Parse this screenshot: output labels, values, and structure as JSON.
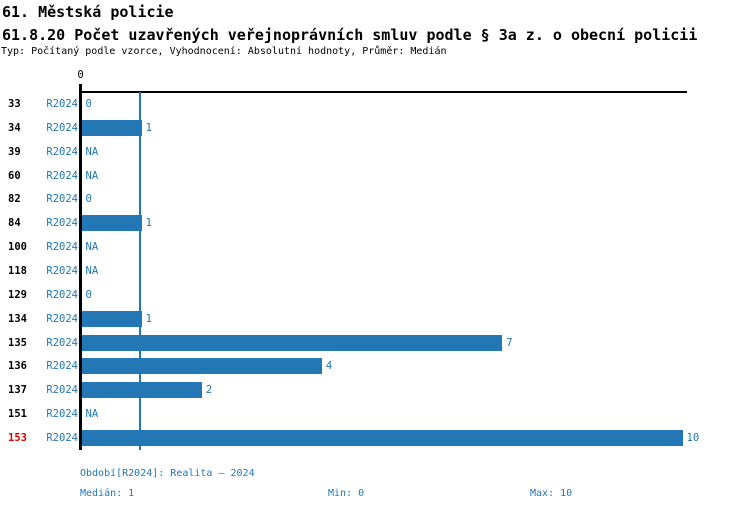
{
  "header": {
    "title": "61. Městská policie",
    "subtitle": "61.8.20 Počet uzavřených veřejnoprávních smluv podle § 3a z. o obecní policii",
    "meta": "Typ: Počítaný podle vzorce, Vyhodnocení: Absolutní hodnoty, Průměr: Medián"
  },
  "chart_data": {
    "type": "bar",
    "orientation": "horizontal",
    "title": "61.8.20 Počet uzavřených veřejnoprávních smluv podle § 3a z. o obecní policii",
    "series_name": "R2024",
    "axis_tick_label": "0",
    "xlim": [
      0,
      10
    ],
    "median_line_at": 1,
    "grid": false,
    "legend_position": "none",
    "categories": [
      "33",
      "34",
      "39",
      "60",
      "82",
      "84",
      "100",
      "118",
      "129",
      "134",
      "135",
      "136",
      "137",
      "151",
      "153"
    ],
    "values": [
      0,
      1,
      null,
      null,
      0,
      1,
      null,
      null,
      0,
      1,
      7,
      4,
      2,
      null,
      10
    ],
    "rows": [
      {
        "category": "33",
        "period": "R2024",
        "value": 0,
        "display": "0",
        "highlight": false
      },
      {
        "category": "34",
        "period": "R2024",
        "value": 1,
        "display": "1",
        "highlight": false
      },
      {
        "category": "39",
        "period": "R2024",
        "value": null,
        "display": "NA",
        "highlight": false
      },
      {
        "category": "60",
        "period": "R2024",
        "value": null,
        "display": "NA",
        "highlight": false
      },
      {
        "category": "82",
        "period": "R2024",
        "value": 0,
        "display": "0",
        "highlight": false
      },
      {
        "category": "84",
        "period": "R2024",
        "value": 1,
        "display": "1",
        "highlight": false
      },
      {
        "category": "100",
        "period": "R2024",
        "value": null,
        "display": "NA",
        "highlight": false
      },
      {
        "category": "118",
        "period": "R2024",
        "value": null,
        "display": "NA",
        "highlight": false
      },
      {
        "category": "129",
        "period": "R2024",
        "value": 0,
        "display": "0",
        "highlight": false
      },
      {
        "category": "134",
        "period": "R2024",
        "value": 1,
        "display": "1",
        "highlight": false
      },
      {
        "category": "135",
        "period": "R2024",
        "value": 7,
        "display": "7",
        "highlight": false
      },
      {
        "category": "136",
        "period": "R2024",
        "value": 4,
        "display": "4",
        "highlight": false
      },
      {
        "category": "137",
        "period": "R2024",
        "value": 2,
        "display": "2",
        "highlight": false
      },
      {
        "category": "151",
        "period": "R2024",
        "value": null,
        "display": "NA",
        "highlight": false
      },
      {
        "category": "153",
        "period": "R2024",
        "value": 10,
        "display": "10",
        "highlight": true
      }
    ],
    "colors": {
      "bar": "#2277b4",
      "label_blue": "#1f77b4",
      "highlight_red": "#dd0000",
      "axis_black": "#000000"
    }
  },
  "footer": {
    "period_label": "Období[R2024]: Realita – 2024",
    "median": "Medián: 1",
    "min": "Min: 0",
    "max": "Max: 10"
  }
}
